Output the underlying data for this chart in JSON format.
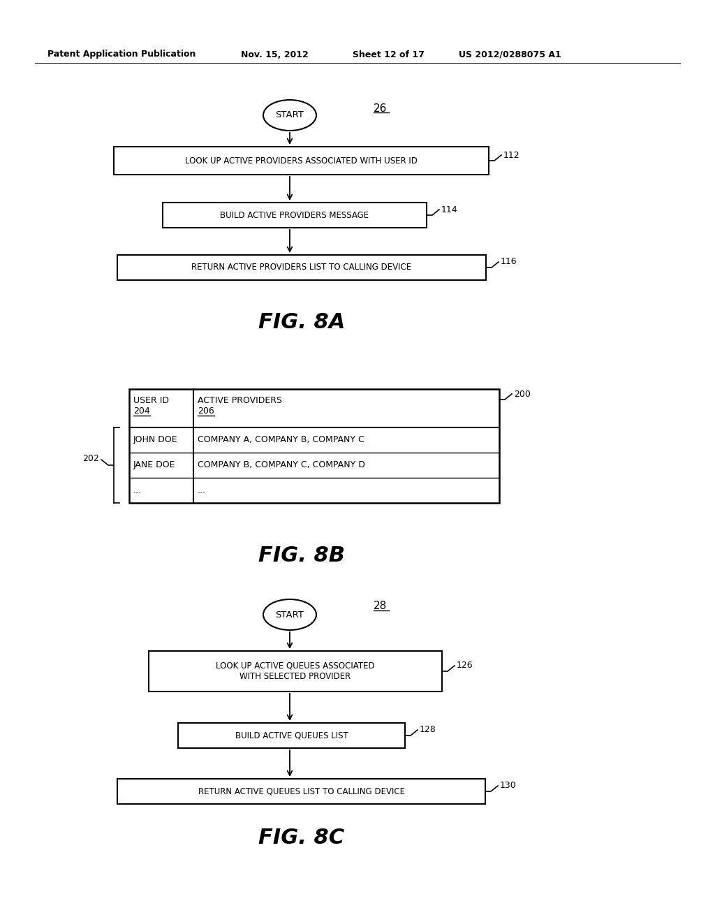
{
  "bg_color": "#ffffff",
  "header_text": "Patent Application Publication",
  "header_date": "Nov. 15, 2012",
  "header_sheet": "Sheet 12 of 17",
  "header_patent": "US 2012/0288075 A1",
  "fig8a": {
    "title": "FIG. 8A",
    "label": "26",
    "box1_text": "LOOK UP ACTIVE PROVIDERS ASSOCIATED WITH USER ID",
    "box1_label": "112",
    "box2_text": "BUILD ACTIVE PROVIDERS MESSAGE",
    "box2_label": "114",
    "box3_text": "RETURN ACTIVE PROVIDERS LIST TO CALLING DEVICE",
    "box3_label": "116"
  },
  "fig8b": {
    "title": "FIG. 8B",
    "table_label": "200",
    "rows_label": "202",
    "col1_header_line1": "USER ID",
    "col1_header_line2": "204",
    "col2_header_line1": "ACTIVE PROVIDERS",
    "col2_header_line2": "206",
    "rows": [
      [
        "JOHN DOE",
        "COMPANY A, COMPANY B, COMPANY C"
      ],
      [
        "JANE DOE",
        "COMPANY B, COMPANY C, COMPANY D"
      ],
      [
        "...",
        "..."
      ]
    ]
  },
  "fig8c": {
    "title": "FIG. 8C",
    "label": "28",
    "box1_text": "LOOK UP ACTIVE QUEUES ASSOCIATED\nWITH SELECTED PROVIDER",
    "box1_label": "126",
    "box2_text": "BUILD ACTIVE QUEUES LIST",
    "box2_label": "128",
    "box3_text": "RETURN ACTIVE QUEUES LIST TO CALLING DEVICE",
    "box3_label": "130"
  }
}
